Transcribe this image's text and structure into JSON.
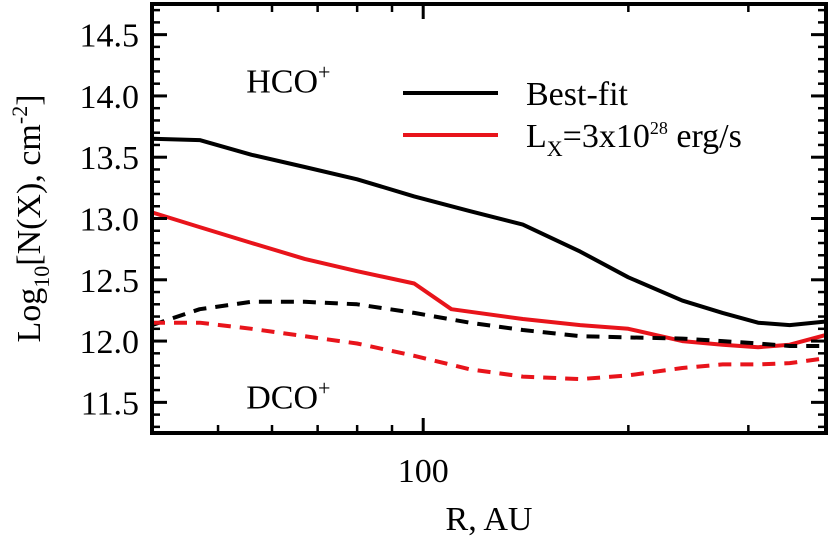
{
  "chart_data": {
    "type": "line",
    "xlabel": "R, AU",
    "ylabel": "Log10[N(X), cm-2]",
    "ylabel_parts": {
      "pre": "Log",
      "sub": "10",
      "mid": "[N(X), cm",
      "sup": "-2",
      "post": "]"
    },
    "xscale": "log",
    "xlim": [
      40,
      390
    ],
    "ylim": [
      11.25,
      14.75
    ],
    "x_ticks": [
      {
        "value": 100,
        "label": "100"
      }
    ],
    "y_ticks": [
      {
        "value": 11.5,
        "label": "11.5"
      },
      {
        "value": 12.0,
        "label": "12.0"
      },
      {
        "value": 12.5,
        "label": "12.5"
      },
      {
        "value": 13.0,
        "label": "13.0"
      },
      {
        "value": 13.5,
        "label": "13.5"
      },
      {
        "value": 14.0,
        "label": "14.0"
      },
      {
        "value": 14.5,
        "label": "14.5"
      }
    ],
    "legend_position": "top-right",
    "legend": [
      {
        "label": "Best-fit",
        "color": "#000000"
      },
      {
        "label": "L",
        "sub": "X",
        "rest": "=3x10",
        "sup": "28",
        "tail": " erg/s",
        "color": "#e8141b"
      }
    ],
    "annotations": [
      {
        "base": "HCO",
        "sup": "+",
        "x": 55,
        "y": 14.03
      },
      {
        "base": "DCO",
        "sup": "+",
        "x": 55,
        "y": 11.45
      }
    ],
    "series": [
      {
        "species": "HCO+",
        "legend_index": 0,
        "color": "#000000",
        "style": "solid",
        "x": [
          40,
          47,
          56,
          67,
          80,
          97,
          117,
          140,
          170,
          200,
          240,
          275,
          310,
          345,
          390
        ],
        "y": [
          13.65,
          13.64,
          13.52,
          13.42,
          13.32,
          13.18,
          13.06,
          12.95,
          12.73,
          12.52,
          12.33,
          12.23,
          12.15,
          12.13,
          12.16
        ]
      },
      {
        "species": "HCO+",
        "legend_index": 1,
        "color": "#e8141b",
        "style": "solid",
        "x": [
          40,
          47,
          56,
          67,
          80,
          97,
          110,
          140,
          170,
          200,
          240,
          275,
          310,
          345,
          390
        ],
        "y": [
          13.05,
          12.93,
          12.8,
          12.67,
          12.57,
          12.47,
          12.26,
          12.18,
          12.13,
          12.1,
          12.0,
          11.97,
          11.95,
          11.97,
          12.05
        ]
      },
      {
        "species": "DCO+",
        "legend_index": 0,
        "color": "#000000",
        "style": "dashed",
        "x": [
          40,
          47,
          56,
          67,
          80,
          97,
          117,
          140,
          170,
          200,
          240,
          275,
          310,
          345,
          390
        ],
        "y": [
          12.13,
          12.26,
          12.32,
          12.32,
          12.3,
          12.23,
          12.15,
          12.09,
          12.04,
          12.03,
          12.02,
          12.0,
          11.98,
          11.96,
          11.96
        ]
      },
      {
        "species": "DCO+",
        "legend_index": 1,
        "color": "#e8141b",
        "style": "dashed",
        "x": [
          40,
          47,
          56,
          67,
          80,
          97,
          117,
          140,
          170,
          200,
          240,
          275,
          310,
          345,
          390
        ],
        "y": [
          12.15,
          12.15,
          12.1,
          12.04,
          11.98,
          11.88,
          11.77,
          11.71,
          11.69,
          11.72,
          11.78,
          11.81,
          11.81,
          11.82,
          11.86
        ]
      }
    ]
  }
}
